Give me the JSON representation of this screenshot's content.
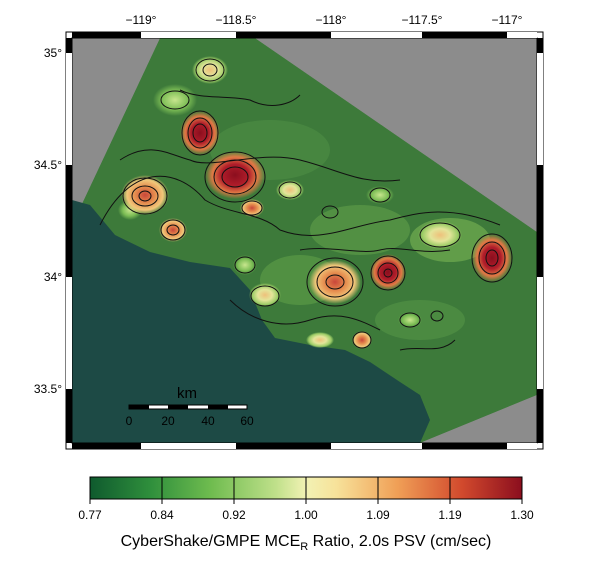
{
  "map": {
    "lon_ticks": [
      "−119°",
      "−118.5°",
      "−118°",
      "−117.5°",
      "−117°"
    ],
    "lat_ticks": [
      "35°",
      "34.5°",
      "34°",
      "33.5°"
    ],
    "scale_bar": {
      "title": "km",
      "labels": [
        "0",
        "20",
        "40",
        "60"
      ]
    },
    "colors": {
      "ocean": "#1d4a45",
      "no_data": "#8c8c8c",
      "base_green": "#3d7a3a",
      "contour": "#111111"
    }
  },
  "colorbar": {
    "title_prefix": "CyberShake/GMPE MCE",
    "title_subscript": "R",
    "title_suffix": " Ratio, 2.0s PSV (cm/sec)",
    "tick_labels": [
      "0.77",
      "0.84",
      "0.92",
      "1.00",
      "1.09",
      "1.19",
      "1.30"
    ],
    "colors": [
      "#0f5a2e",
      "#2f8f3c",
      "#6fbc4f",
      "#d8ee9a",
      "#f7e29a",
      "#f0a057",
      "#d24a2d",
      "#8b0e1e"
    ]
  }
}
